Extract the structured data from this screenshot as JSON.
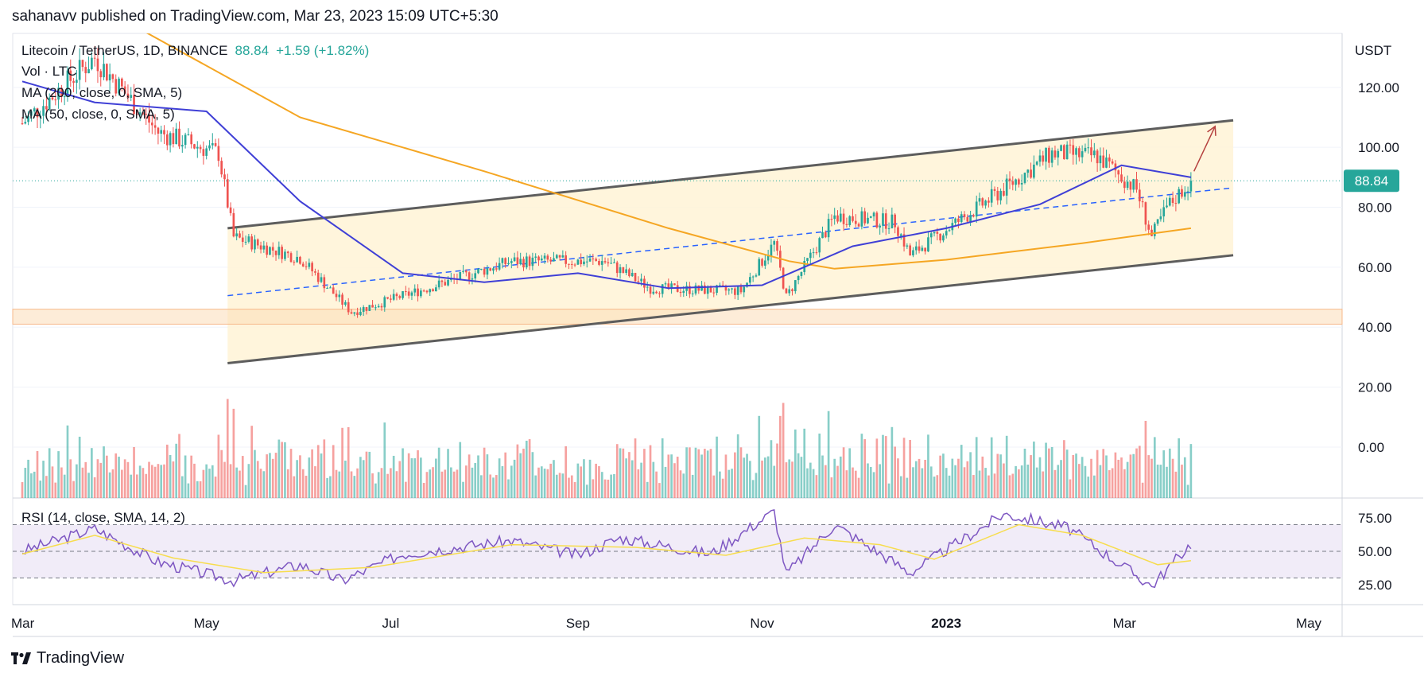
{
  "byline": "sahanavv published on TradingView.com, Mar 23, 2023 15:09 UTC+5:30",
  "header": {
    "symbol": "Litecoin / TetherUS, 1D, BINANCE",
    "price": "88.84",
    "change": "+1.59 (+1.82%)",
    "indicators": [
      "Vol · LTC",
      "MA (200, close, 0, SMA, 5)",
      "MA (50, close, 0, SMA, 5)"
    ],
    "rsi_label": "RSI (14, close, SMA, 14, 2)"
  },
  "currency": "USDT",
  "last_price_label": "88.84",
  "brand": "TradingView",
  "colors": {
    "up": "#26a69a",
    "down": "#ef5350",
    "ma200": "#f5a623",
    "ma50": "#3f3fd6",
    "rsi": "#7e57c2",
    "rsi_ma": "#f7dd4d",
    "channel_fill": "#fff3d6",
    "channel_line": "#5d5d5d",
    "mid_line": "#2962ff",
    "zone": "#fcdcb8",
    "arrow": "#b5403e",
    "price_badge": "#26a69a"
  },
  "chart_data": [
    {
      "type": "candlestick",
      "title": "Litecoin / TetherUS, 1D, BINANCE",
      "x_ticks": [
        "Mar",
        "May",
        "Jul",
        "Sep",
        "Nov",
        "2023",
        "Mar",
        "May"
      ],
      "y_ticks": [
        120,
        100,
        80,
        60,
        40,
        20,
        0
      ],
      "y_tick_labels": [
        "120.00",
        "100.00",
        "80.00",
        "60.00",
        "40.00",
        "20.00",
        "0.00"
      ],
      "ylim": [
        -17,
        138
      ],
      "last_price": 88.84,
      "key_closes": [
        {
          "date": "2022-03-01",
          "close": 108
        },
        {
          "date": "2022-03-25",
          "close": 130
        },
        {
          "date": "2022-04-15",
          "close": 105
        },
        {
          "date": "2022-05-05",
          "close": 98
        },
        {
          "date": "2022-05-10",
          "close": 70
        },
        {
          "date": "2022-06-01",
          "close": 63
        },
        {
          "date": "2022-06-18",
          "close": 45
        },
        {
          "date": "2022-07-10",
          "close": 52
        },
        {
          "date": "2022-08-10",
          "close": 62
        },
        {
          "date": "2022-09-10",
          "close": 62
        },
        {
          "date": "2022-09-25",
          "close": 53
        },
        {
          "date": "2022-10-25",
          "close": 52
        },
        {
          "date": "2022-11-05",
          "close": 68
        },
        {
          "date": "2022-11-09",
          "close": 50
        },
        {
          "date": "2022-11-25",
          "close": 77
        },
        {
          "date": "2022-12-15",
          "close": 75
        },
        {
          "date": "2022-12-20",
          "close": 64
        },
        {
          "date": "2023-01-20",
          "close": 86
        },
        {
          "date": "2023-02-05",
          "close": 98
        },
        {
          "date": "2023-02-20",
          "close": 97
        },
        {
          "date": "2023-03-05",
          "close": 86
        },
        {
          "date": "2023-03-10",
          "close": 70
        },
        {
          "date": "2023-03-15",
          "close": 80
        },
        {
          "date": "2023-03-23",
          "close": 88.84
        }
      ],
      "ma200": [
        {
          "date": "2022-04-08",
          "value": 140
        },
        {
          "date": "2022-06-01",
          "value": 110
        },
        {
          "date": "2022-08-01",
          "value": 92
        },
        {
          "date": "2022-10-01",
          "value": 73
        },
        {
          "date": "2022-11-10",
          "value": 62
        },
        {
          "date": "2022-11-25",
          "value": 59.5
        },
        {
          "date": "2023-01-01",
          "value": 62.5
        },
        {
          "date": "2023-02-15",
          "value": 68
        },
        {
          "date": "2023-03-23",
          "value": 73
        }
      ],
      "ma50": [
        {
          "date": "2022-03-01",
          "value": 122
        },
        {
          "date": "2022-03-25",
          "value": 115
        },
        {
          "date": "2022-05-01",
          "value": 112
        },
        {
          "date": "2022-06-01",
          "value": 82
        },
        {
          "date": "2022-07-05",
          "value": 58
        },
        {
          "date": "2022-08-01",
          "value": 55
        },
        {
          "date": "2022-09-01",
          "value": 58
        },
        {
          "date": "2022-10-01",
          "value": 53
        },
        {
          "date": "2022-11-01",
          "value": 54
        },
        {
          "date": "2022-12-01",
          "value": 67
        },
        {
          "date": "2023-01-01",
          "value": 73
        },
        {
          "date": "2023-02-01",
          "value": 81
        },
        {
          "date": "2023-02-28",
          "value": 94
        },
        {
          "date": "2023-03-23",
          "value": 90
        }
      ],
      "channel": {
        "start": "2022-05-08",
        "end": "2023-04-06",
        "upper": [
          73,
          109
        ],
        "lower": [
          28,
          64
        ],
        "mid": [
          50.5,
          86.5
        ]
      },
      "support_zone": [
        41,
        46
      ],
      "arrow": {
        "from": [
          "2023-03-24",
          92
        ],
        "to": [
          "2023-03-31",
          107
        ]
      }
    },
    {
      "type": "bar",
      "title": "Vol · LTC",
      "note": "volume bars, relative"
    },
    {
      "type": "line",
      "title": "RSI (14, close, SMA, 14, 2)",
      "y_ticks": [
        75,
        50,
        25
      ],
      "y_tick_labels": [
        "75.00",
        "50.00",
        "25.00"
      ],
      "ylim": [
        10,
        90
      ],
      "band": [
        30,
        70
      ],
      "rsi": [
        {
          "date": "2022-03-01",
          "value": 50
        },
        {
          "date": "2022-03-25",
          "value": 67
        },
        {
          "date": "2022-04-15",
          "value": 42
        },
        {
          "date": "2022-05-10",
          "value": 28
        },
        {
          "date": "2022-06-01",
          "value": 40
        },
        {
          "date": "2022-06-15",
          "value": 28
        },
        {
          "date": "2022-07-05",
          "value": 48
        },
        {
          "date": "2022-08-10",
          "value": 58
        },
        {
          "date": "2022-09-01",
          "value": 47
        },
        {
          "date": "2022-09-15",
          "value": 60
        },
        {
          "date": "2022-10-15",
          "value": 48
        },
        {
          "date": "2022-11-05",
          "value": 80
        },
        {
          "date": "2022-11-09",
          "value": 33
        },
        {
          "date": "2022-11-25",
          "value": 70
        },
        {
          "date": "2022-12-20",
          "value": 34
        },
        {
          "date": "2023-01-20",
          "value": 78
        },
        {
          "date": "2023-02-10",
          "value": 68
        },
        {
          "date": "2023-03-10",
          "value": 24
        },
        {
          "date": "2023-03-23",
          "value": 56
        }
      ],
      "rsi_ma": [
        {
          "date": "2022-03-01",
          "value": 48
        },
        {
          "date": "2022-03-25",
          "value": 62
        },
        {
          "date": "2022-04-20",
          "value": 45
        },
        {
          "date": "2022-05-20",
          "value": 34
        },
        {
          "date": "2022-06-25",
          "value": 38
        },
        {
          "date": "2022-08-10",
          "value": 55
        },
        {
          "date": "2022-09-20",
          "value": 53
        },
        {
          "date": "2022-10-20",
          "value": 47
        },
        {
          "date": "2022-11-15",
          "value": 60
        },
        {
          "date": "2022-12-10",
          "value": 55
        },
        {
          "date": "2022-12-28",
          "value": 44
        },
        {
          "date": "2023-01-25",
          "value": 70
        },
        {
          "date": "2023-02-15",
          "value": 62
        },
        {
          "date": "2023-03-12",
          "value": 40
        },
        {
          "date": "2023-03-23",
          "value": 43
        }
      ]
    }
  ]
}
